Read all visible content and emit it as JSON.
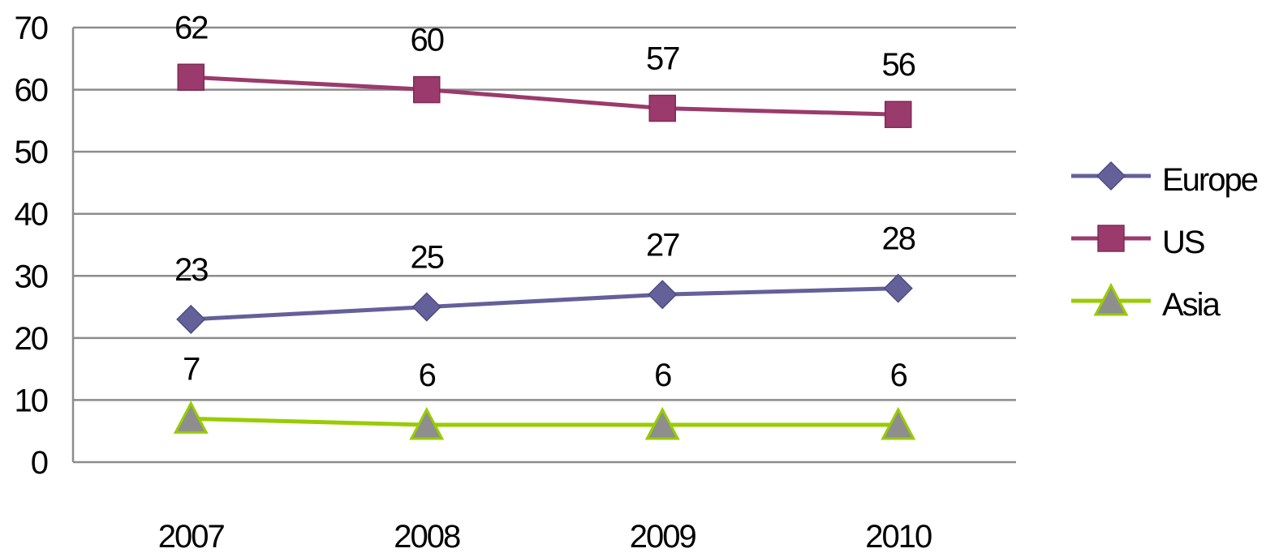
{
  "chart_data": {
    "type": "line",
    "title": "",
    "xlabel": "",
    "ylabel": "",
    "categories": [
      "2007",
      "2008",
      "2009",
      "2010"
    ],
    "ylim": [
      0,
      70
    ],
    "yticks": [
      "0",
      "10",
      "20",
      "30",
      "40",
      "50",
      "60",
      "70"
    ],
    "grid": true,
    "legend_position": "right",
    "series": [
      {
        "name": "Europe",
        "values": [
          23,
          25,
          27,
          28
        ],
        "color": "#64609a",
        "marker": "diamond"
      },
      {
        "name": "US",
        "values": [
          62,
          60,
          57,
          56
        ],
        "color": "#9b3a6c",
        "marker": "square"
      },
      {
        "name": "Asia",
        "values": [
          7,
          6,
          6,
          6
        ],
        "color": "#99cc00",
        "marker": "triangle",
        "marker_fill": "#8e8e8e"
      }
    ]
  }
}
